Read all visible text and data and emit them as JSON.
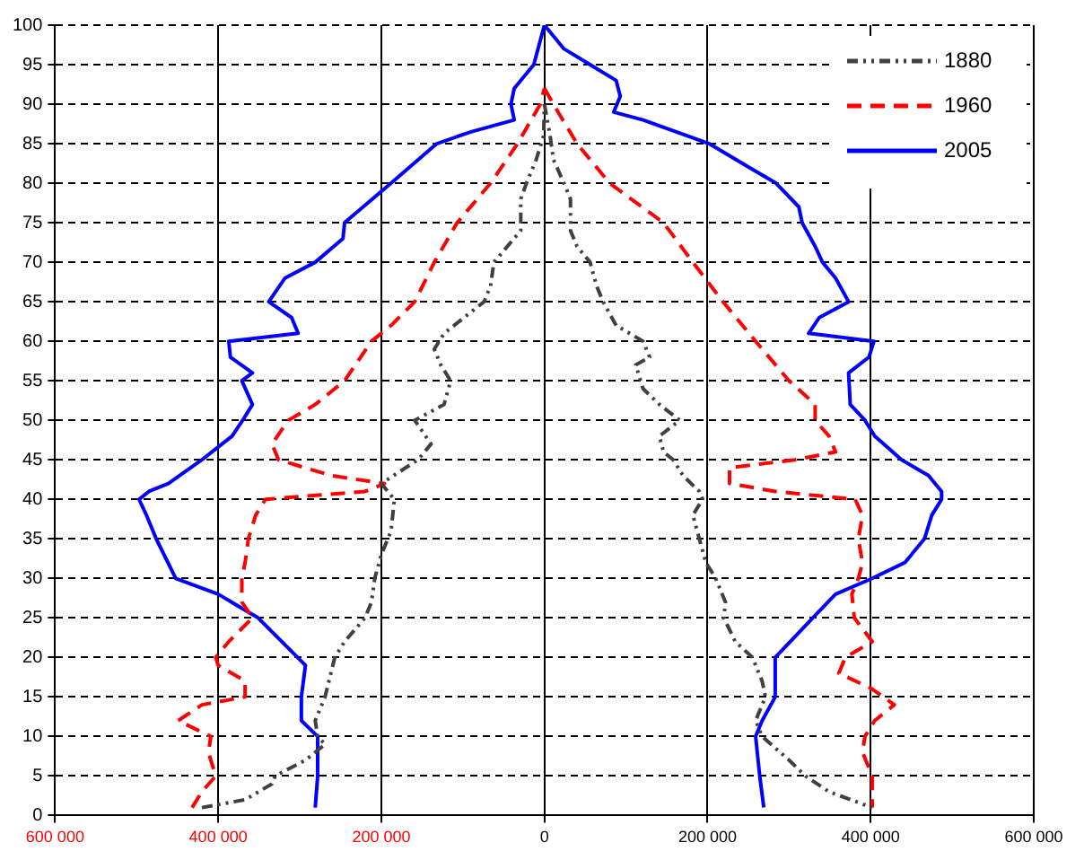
{
  "chart_data": {
    "type": "line",
    "xlim": [
      -600000,
      600000
    ],
    "ylim": [
      0,
      100
    ],
    "xticks": [
      {
        "value": -600000,
        "label": "600 000"
      },
      {
        "value": -400000,
        "label": "400 000"
      },
      {
        "value": -200000,
        "label": "200 000"
      },
      0,
      {
        "value": 200000,
        "label": "200 000"
      },
      {
        "value": 400000,
        "label": "400 000"
      },
      {
        "value": 600000,
        "label": "600 000"
      }
    ],
    "yticks": [
      0,
      5,
      10,
      15,
      20,
      25,
      30,
      35,
      40,
      45,
      50,
      55,
      60,
      65,
      70,
      75,
      80,
      85,
      90,
      95,
      100
    ],
    "grid": true,
    "legend": "top right",
    "marker": "none",
    "series": [
      {
        "name": "1880",
        "color": "#404040",
        "line_style": "dotted",
        "x": [
          -420000,
          -367000,
          -334000,
          -330000,
          -293000,
          -269000,
          -278000,
          -281000,
          -269000,
          -257000,
          -245000,
          -220000,
          -212000,
          -208000,
          -200000,
          -188000,
          -184000,
          -200000,
          -155000,
          -139000,
          -159000,
          -123000,
          -115000,
          -127000,
          -135000,
          -123000,
          -74000,
          -66000,
          -62000,
          -29000,
          -29000,
          -22000,
          -10000,
          -1000,
          0
        ],
        "values": [
          1,
          2,
          4,
          5,
          7,
          9,
          10,
          12,
          15,
          20,
          22,
          25,
          27,
          30,
          33,
          36,
          40,
          42,
          45,
          47,
          50,
          52,
          55,
          57,
          59,
          61,
          65,
          67,
          70,
          74,
          78,
          80,
          83,
          86,
          90
        ]
      },
      {
        "color": "#404040",
        "line_style": "dotted",
        "x": [
          0,
          7000,
          11000,
          24000,
          32000,
          32000,
          40000,
          56000,
          64000,
          72000,
          88000,
          121000,
          129000,
          112000,
          121000,
          141000,
          166000,
          141000,
          146000,
          158000,
          170000,
          190000,
          194000,
          182000,
          190000,
          198000,
          210000,
          222000,
          220000,
          234000,
          255000,
          267000,
          271000,
          259000,
          267000,
          300000,
          320000,
          349000,
          402000
        ],
        "values": [
          90,
          86,
          83,
          80,
          78,
          74,
          72,
          70,
          67,
          65,
          62,
          60,
          58,
          57,
          54,
          52,
          50,
          48,
          46,
          45,
          43,
          41,
          40,
          38,
          35,
          32,
          30,
          27,
          25,
          22,
          20,
          17,
          15,
          12,
          10,
          7,
          5,
          3,
          1
        ]
      },
      {
        "name": "1960",
        "color": "#ff0000",
        "line_style": "dashed",
        "x": [
          -432000,
          -420000,
          -403000,
          -412000,
          -409000,
          -449000,
          -420000,
          -367000,
          -367000,
          -400000,
          -403000,
          -387000,
          -358000,
          -371000,
          -371000,
          -367000,
          -363000,
          -354000,
          -342000,
          -220000,
          -196000,
          -261000,
          -326000,
          -334000,
          -314000,
          -281000,
          -245000,
          -212000,
          -188000,
          -159000,
          -135000,
          -107000,
          -66000,
          -33000,
          -5000,
          0
        ],
        "values": [
          1,
          3,
          5,
          8,
          10,
          12,
          14,
          15,
          17,
          19,
          20,
          22,
          25,
          27,
          30,
          32,
          35,
          38,
          40,
          41,
          42,
          43,
          45,
          47,
          50,
          52,
          55,
          60,
          62,
          65,
          70,
          75,
          80,
          85,
          90,
          92
        ]
      },
      {
        "color": "#ff0000",
        "line_style": "dashed",
        "x": [
          0,
          11000,
          40000,
          80000,
          146000,
          182000,
          219000,
          259000,
          300000,
          332000,
          332000,
          349000,
          357000,
          307000,
          227000,
          227000,
          283000,
          381000,
          390000,
          385000,
          390000,
          385000,
          377000,
          380000,
          402000,
          369000,
          361000,
          402000,
          429000,
          405000,
          393000,
          390000,
          402000,
          402000
        ],
        "values": [
          92,
          90,
          85,
          80,
          75,
          70,
          65,
          60,
          55,
          52,
          50,
          48,
          46,
          45,
          44,
          42,
          41,
          40,
          38,
          35,
          32,
          30,
          28,
          25,
          22,
          20,
          18,
          16,
          14,
          12,
          10,
          8,
          5,
          1
        ]
      },
      {
        "name": "2005",
        "color": "#0000ff",
        "line_style": "solid",
        "x": [
          -281000,
          -278000,
          -278000,
          -298000,
          -298000,
          -293000,
          -351000,
          -400000,
          -452000,
          -476000,
          -488000,
          -497000,
          -485000,
          -461000,
          -420000,
          -383000,
          -370000,
          -358000,
          -371000,
          -358000,
          -385000,
          -387000,
          -302000,
          -310000,
          -338000,
          -318000,
          -281000,
          -247000,
          -245000,
          -188000,
          -132000,
          -90000,
          -37000,
          -41000,
          -37000,
          -13000,
          0
        ],
        "values": [
          1,
          5,
          10,
          12,
          15,
          19,
          25,
          28,
          30,
          35,
          38,
          40,
          41,
          42,
          45,
          48,
          50,
          52,
          55,
          56,
          58,
          60,
          61,
          63,
          65,
          68,
          70,
          73,
          75,
          80,
          85,
          86.5,
          88,
          90,
          92,
          95,
          100
        ]
      },
      {
        "color": "#0000ff",
        "line_style": "solid",
        "x": [
          0,
          24000,
          56000,
          88000,
          93000,
          85000,
          121000,
          202000,
          251000,
          284000,
          312000,
          316000,
          332000,
          341000,
          357000,
          373000,
          337000,
          324000,
          404000,
          398000,
          373000,
          375000,
          393000,
          405000,
          438000,
          471000,
          487000,
          487000,
          475000,
          466000,
          442000,
          402000,
          357000,
          329000,
          283000,
          283000,
          267000,
          259000,
          264000,
          269000
        ],
        "values": [
          100,
          97,
          95,
          93,
          91,
          89,
          88,
          85,
          82,
          80,
          77,
          75,
          72,
          70,
          68,
          65,
          63,
          61,
          60,
          58,
          56,
          52,
          50,
          48,
          45,
          43,
          41,
          40,
          38,
          35,
          32,
          30,
          28,
          25,
          20,
          15,
          12,
          10,
          5,
          1
        ]
      }
    ]
  }
}
